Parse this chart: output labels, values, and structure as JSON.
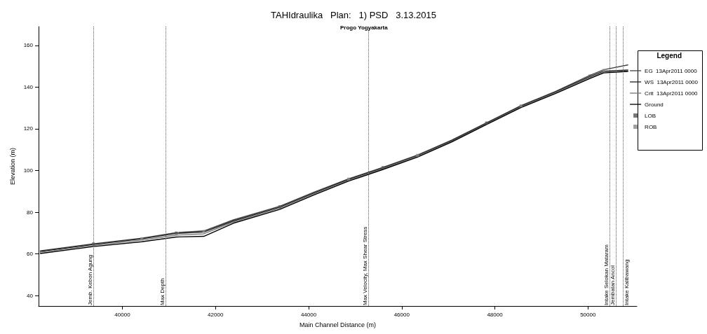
{
  "chart_data": {
    "type": "line",
    "title": "TAHIdraulika   Plan:   1) PSD   3.13.2015",
    "subtitle": "Progo Yogyakarta",
    "xlabel": "Main Channel Distance (m)",
    "ylabel": "Elevation (m)",
    "legend_title": "Legend",
    "legend": "top right",
    "grid": false,
    "marker": "none",
    "line_style": "solid",
    "x": [
      38238,
      39378,
      40415,
      41155,
      41748,
      42385,
      43377,
      44117,
      44858,
      45598,
      46339,
      47079,
      47820,
      48560,
      49301,
      50041,
      50337,
      50856
    ],
    "series": [
      {
        "name": "EG  13Apr2011 0000",
        "color": "#444444",
        "values": [
          61.5,
          64.8,
          67.5,
          70.2,
          71.0,
          76.3,
          82.8,
          89.6,
          96.0,
          101.5,
          107.4,
          114.6,
          122.9,
          131.1,
          137.9,
          145.6,
          148.3,
          150.6
        ]
      },
      {
        "name": "WS  13Apr2011 0000",
        "color": "#222222",
        "values": [
          61.2,
          64.5,
          67.2,
          69.8,
          70.5,
          75.8,
          82.4,
          89.2,
          95.7,
          101.2,
          107.1,
          114.3,
          122.6,
          130.8,
          137.6,
          145.0,
          147.6,
          148.2
        ]
      },
      {
        "name": "Crit  13Apr2011 0000",
        "color": "#777777",
        "values": [
          60.8,
          64.0,
          66.6,
          69.0,
          69.6,
          75.3,
          81.9,
          88.8,
          95.3,
          100.9,
          106.8,
          114.0,
          122.3,
          130.5,
          137.3,
          144.6,
          147.2,
          147.8
        ]
      },
      {
        "name": "Ground",
        "color": "#000000",
        "values": [
          60.2,
          63.5,
          65.8,
          68.1,
          68.4,
          74.7,
          81.3,
          88.3,
          94.9,
          100.5,
          106.4,
          113.7,
          122.0,
          130.2,
          136.9,
          144.1,
          146.8,
          147.5
        ]
      },
      {
        "name": "LOB",
        "type": "scatter",
        "marker": "square",
        "color": "#555555",
        "x": [
          39378,
          41155,
          43377,
          45598,
          47820,
          50041
        ],
        "values": [
          64.8,
          70.0,
          82.6,
          101.4,
          122.8,
          145.3
        ]
      },
      {
        "name": "ROB",
        "type": "scatter",
        "marker": "square",
        "color": "#888888",
        "x": [
          40415,
          41748,
          44858,
          46339,
          48560,
          50337
        ],
        "values": [
          67.3,
          70.8,
          95.9,
          107.3,
          131.0,
          148.0
        ]
      }
    ],
    "xlim": [
      38200,
      51050
    ],
    "xticks": [
      40000,
      42000,
      44000,
      46000,
      48000,
      50000
    ],
    "ylim": [
      35,
      169
    ],
    "yticks": [
      40,
      60,
      80,
      100,
      120,
      140,
      160
    ],
    "ref_lines": [
      {
        "axis": "x",
        "value": 39380,
        "label": "Jemb. Kebon Agung"
      },
      {
        "axis": "x",
        "value": 40930,
        "label": "Max Depth"
      },
      {
        "axis": "x",
        "value": 45290,
        "label": "Max Velocity, Max Shear Stress"
      },
      {
        "axis": "x",
        "value": 50470,
        "label": "Intake Selokan Mataram"
      },
      {
        "axis": "x",
        "value": 50600,
        "label": "Jembatan Ancol"
      },
      {
        "axis": "x",
        "value": 50750,
        "label": "Intake Kalibawang"
      }
    ]
  }
}
